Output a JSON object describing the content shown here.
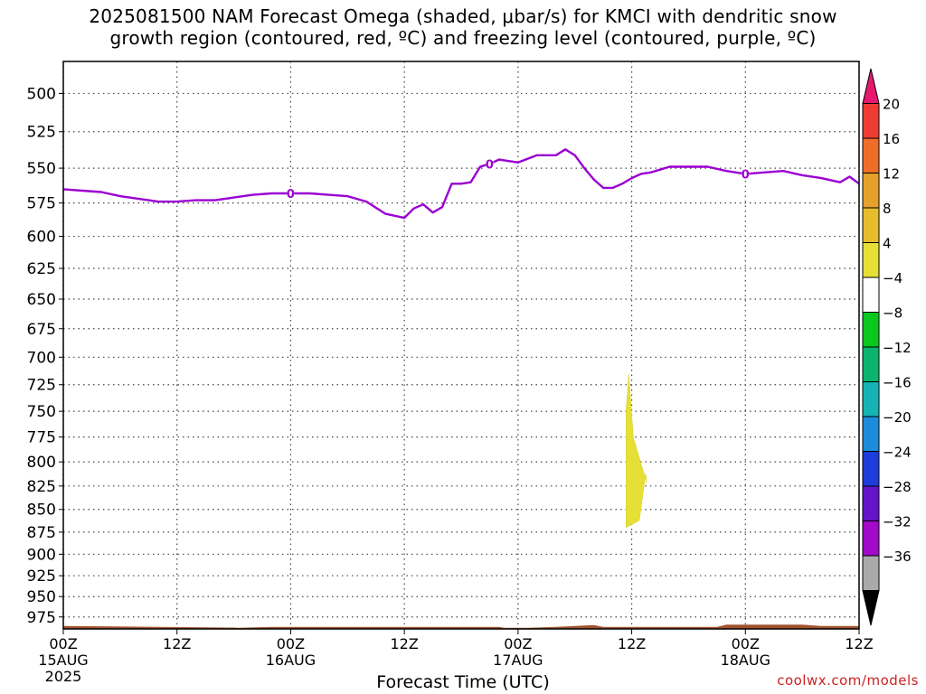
{
  "title": {
    "line1": "2025081500 NAM Forecast Omega (shaded, μbar/s) for KMCI with dendritic snow",
    "line2": "growth region (contoured, red, ºC) and freezing level (contoured, purple, ºC)"
  },
  "credit": "coolwx.com/models",
  "chart_data": {
    "type": "heatmap",
    "title": "2025081500 NAM Forecast Omega (shaded, μbar/s) for KMCI with dendritic snow growth region (contoured, red, ºC) and freezing level (contoured, purple, ºC)",
    "xlabel": "Forecast Time (UTC)",
    "ylabel": "",
    "y_scale": "log-pressure (inverted)",
    "ylim": [
      990,
      480
    ],
    "y_ticks": [
      500,
      525,
      550,
      575,
      600,
      625,
      650,
      675,
      700,
      725,
      750,
      775,
      800,
      825,
      850,
      875,
      900,
      925,
      950,
      975
    ],
    "xlim": [
      "2025-08-15 00Z",
      "2025-08-18 12Z"
    ],
    "x_ticks": [
      {
        "hour": 0,
        "line1": "00Z",
        "line2": "15AUG",
        "line3": "2025"
      },
      {
        "hour": 12,
        "line1": "12Z",
        "line2": "",
        "line3": ""
      },
      {
        "hour": 24,
        "line1": "00Z",
        "line2": "16AUG",
        "line3": ""
      },
      {
        "hour": 36,
        "line1": "12Z",
        "line2": "",
        "line3": ""
      },
      {
        "hour": 48,
        "line1": "00Z",
        "line2": "17AUG",
        "line3": ""
      },
      {
        "hour": 60,
        "line1": "12Z",
        "line2": "",
        "line3": ""
      },
      {
        "hour": 72,
        "line1": "00Z",
        "line2": "18AUG",
        "line3": ""
      },
      {
        "hour": 84,
        "line1": "12Z",
        "line2": "",
        "line3": ""
      }
    ],
    "grid": true,
    "colorbar": {
      "labels": [
        "20",
        "16",
        "12",
        "8",
        "4",
        "-4",
        "-8",
        "-12",
        "-16",
        "-20",
        "-24",
        "-28",
        "-32",
        "-36"
      ],
      "colors": [
        "#e8186e",
        "#ee3c32",
        "#ee6e28",
        "#e6a02c",
        "#e6be2c",
        "#e6e036",
        "#ffffff",
        "#0ac81e",
        "#0ab46e",
        "#14b4b4",
        "#1e8cdc",
        "#1e3cdc",
        "#6414c8",
        "#a00ac8",
        "#aaaaaa",
        "#000000"
      ]
    },
    "freezing_level": {
      "name": "0 ºC",
      "color": "#9b00d2",
      "label": "0",
      "x": [
        0,
        2,
        4,
        6,
        8,
        10,
        12,
        14,
        16,
        18,
        20,
        22,
        24,
        26,
        28,
        30,
        32,
        34,
        36,
        37,
        38,
        39,
        40,
        41,
        42,
        43,
        44,
        45,
        46,
        48,
        50,
        52,
        53,
        54,
        55,
        56,
        57,
        58,
        59,
        60,
        61,
        62,
        63,
        64,
        66,
        68,
        70,
        72,
        74,
        76,
        78,
        80,
        82,
        83,
        84
      ],
      "y": [
        565,
        566,
        567,
        570,
        572,
        574,
        574,
        573,
        573,
        571,
        569,
        568,
        568,
        568,
        569,
        570,
        574,
        583,
        586,
        579,
        576,
        582,
        578,
        561,
        561,
        560,
        549,
        547,
        544,
        546,
        541,
        541,
        537,
        541,
        550,
        558,
        564,
        564,
        561,
        557,
        554,
        553,
        551,
        549,
        549,
        549,
        552,
        554,
        553,
        552,
        555,
        557,
        560,
        556,
        561
      ],
      "label_x": [
        24,
        45,
        72
      ]
    },
    "omega_regions": [
      {
        "value_range": [
          4,
          8
        ],
        "color": "#e6e036",
        "time_hours": [
          59.5,
          61
        ],
        "pressure": [
          715,
          870
        ]
      }
    ],
    "terrain": {
      "color": "#a0522d",
      "surface_pressure_approx": 975
    }
  }
}
